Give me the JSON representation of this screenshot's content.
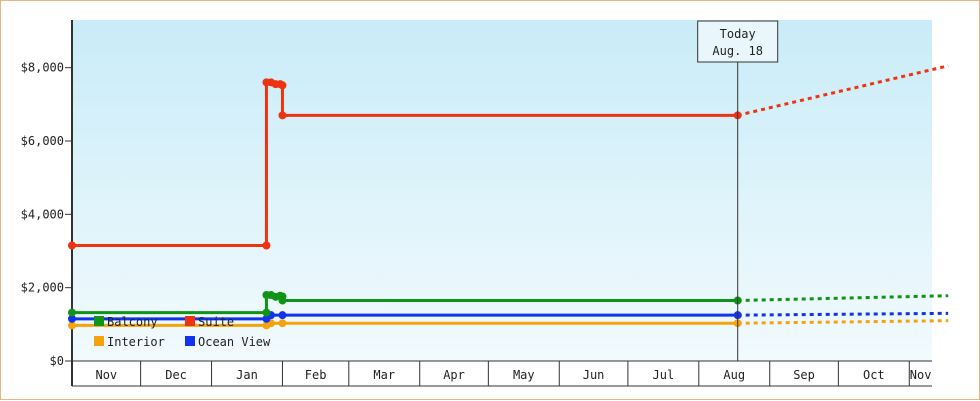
{
  "chart_data": {
    "type": "line",
    "title": "",
    "xlabel": "",
    "ylabel": "",
    "ylim": [
      0,
      9300
    ],
    "y_ticks": [
      0,
      2000,
      4000,
      6000,
      8000
    ],
    "y_tick_labels": [
      "$0",
      "$2,000",
      "$4,000",
      "$6,000",
      "$8,000"
    ],
    "x_months": [
      "Nov",
      "Dec",
      "Jan",
      "Feb",
      "Mar",
      "Apr",
      "May",
      "Jun",
      "Jul",
      "Aug",
      "Sep",
      "Oct",
      "Nov"
    ],
    "grid": false,
    "background_gradient": [
      "#c9ecf8",
      "#f2fafd"
    ],
    "today_marker": {
      "line1": "Today",
      "line2": "Aug. 18",
      "date": "2024-08-18"
    },
    "legend": {
      "placement": "bottom-left"
    },
    "series": [
      {
        "name": "Suite",
        "color": "#ee3311",
        "points": [
          [
            "2023-11-01",
            3150
          ],
          [
            "2024-01-25",
            3150
          ],
          [
            "2024-01-25",
            7600
          ],
          [
            "2024-01-27",
            7600
          ],
          [
            "2024-01-29",
            7550
          ],
          [
            "2024-01-31",
            7550
          ],
          [
            "2024-02-01",
            7520
          ],
          [
            "2024-02-01",
            6700
          ],
          [
            "2024-08-18",
            6700
          ]
        ],
        "forecast": [
          [
            "2024-08-18",
            6700
          ],
          [
            "2024-11-18",
            8050
          ]
        ]
      },
      {
        "name": "Balcony",
        "color": "#109418",
        "points": [
          [
            "2023-11-01",
            1320
          ],
          [
            "2024-01-25",
            1320
          ],
          [
            "2024-01-25",
            1800
          ],
          [
            "2024-01-27",
            1800
          ],
          [
            "2024-01-29",
            1750
          ],
          [
            "2024-01-31",
            1780
          ],
          [
            "2024-02-01",
            1760
          ],
          [
            "2024-02-01",
            1650
          ],
          [
            "2024-08-18",
            1650
          ]
        ],
        "forecast": [
          [
            "2024-08-18",
            1650
          ],
          [
            "2024-11-18",
            1780
          ]
        ]
      },
      {
        "name": "Ocean View",
        "color": "#1133ee",
        "points": [
          [
            "2023-11-01",
            1150
          ],
          [
            "2024-01-25",
            1150
          ],
          [
            "2024-01-27",
            1250
          ],
          [
            "2024-02-01",
            1250
          ],
          [
            "2024-08-18",
            1250
          ]
        ],
        "forecast": [
          [
            "2024-08-18",
            1250
          ],
          [
            "2024-11-18",
            1300
          ]
        ]
      },
      {
        "name": "Interior",
        "color": "#f4a30c",
        "points": [
          [
            "2023-11-01",
            970
          ],
          [
            "2024-01-25",
            970
          ],
          [
            "2024-01-27",
            1030
          ],
          [
            "2024-02-01",
            1030
          ],
          [
            "2024-08-18",
            1030
          ]
        ],
        "forecast": [
          [
            "2024-08-18",
            1030
          ],
          [
            "2024-11-18",
            1100
          ]
        ]
      }
    ]
  }
}
